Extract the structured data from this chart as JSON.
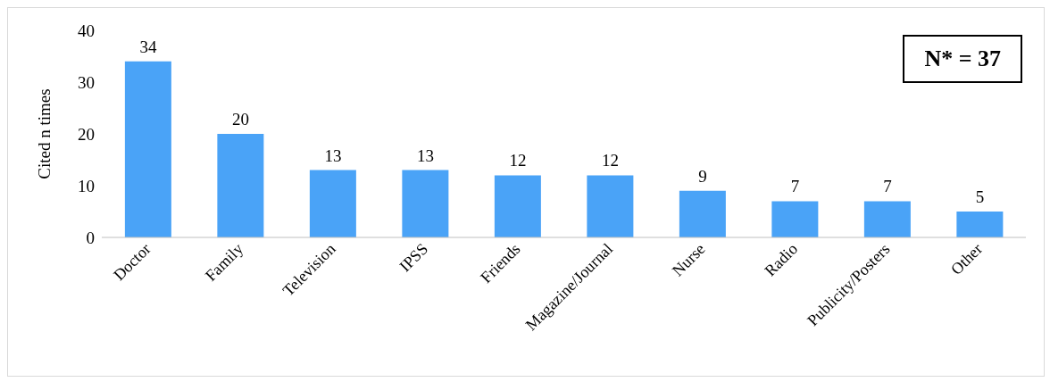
{
  "chart_data": {
    "type": "bar",
    "categories": [
      "Doctor",
      "Family",
      "Television",
      "IPSS",
      "Friends",
      "Magazine/Journal",
      "Nurse",
      "Radio",
      "Publicity/Posters",
      "Other"
    ],
    "values": [
      34,
      20,
      13,
      13,
      12,
      12,
      9,
      7,
      7,
      5
    ],
    "color": "#4aa3f7",
    "ylabel": "Cited n times",
    "ylim": [
      0,
      40
    ],
    "yticks": [
      0,
      10,
      20,
      30,
      40
    ],
    "data_labels": true,
    "annotations": [
      "N* = 37"
    ]
  }
}
